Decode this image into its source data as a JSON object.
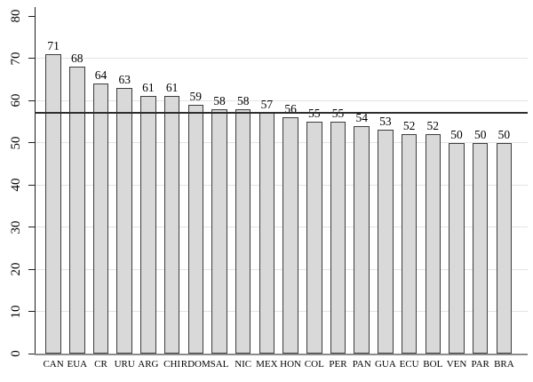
{
  "chart_data": {
    "type": "bar",
    "title": "",
    "xlabel": "",
    "ylabel": "",
    "categories": [
      "CAN",
      "EUA",
      "CR",
      "URU",
      "ARG",
      "CHI",
      "RDOM",
      "SAL",
      "NIC",
      "MEX",
      "HON",
      "COL",
      "PER",
      "PAN",
      "GUA",
      "ECU",
      "BOL",
      "VEN",
      "PAR",
      "BRA"
    ],
    "values": [
      71,
      68,
      64,
      63,
      61,
      61,
      59,
      58,
      58,
      57,
      56,
      55,
      55,
      54,
      53,
      52,
      52,
      50,
      50,
      50
    ],
    "ylim": [
      0,
      80
    ],
    "yticks": [
      0,
      10,
      20,
      30,
      40,
      50,
      60,
      70,
      80
    ],
    "gridlines": [
      10,
      20,
      30,
      40,
      50,
      60,
      70
    ],
    "reference_line": 57,
    "grid": "horizontal-light",
    "legend": "none",
    "colors": {
      "bar_fill": "#d9d9d9",
      "bar_border": "#3d3d3d",
      "gridline": "#e4e4e4",
      "axis_line": "#1f1f1f",
      "baseline": "#8c8c8c",
      "reference_line": "#2e2e2e",
      "label_text": "#000000",
      "background": "#ffffff"
    }
  }
}
